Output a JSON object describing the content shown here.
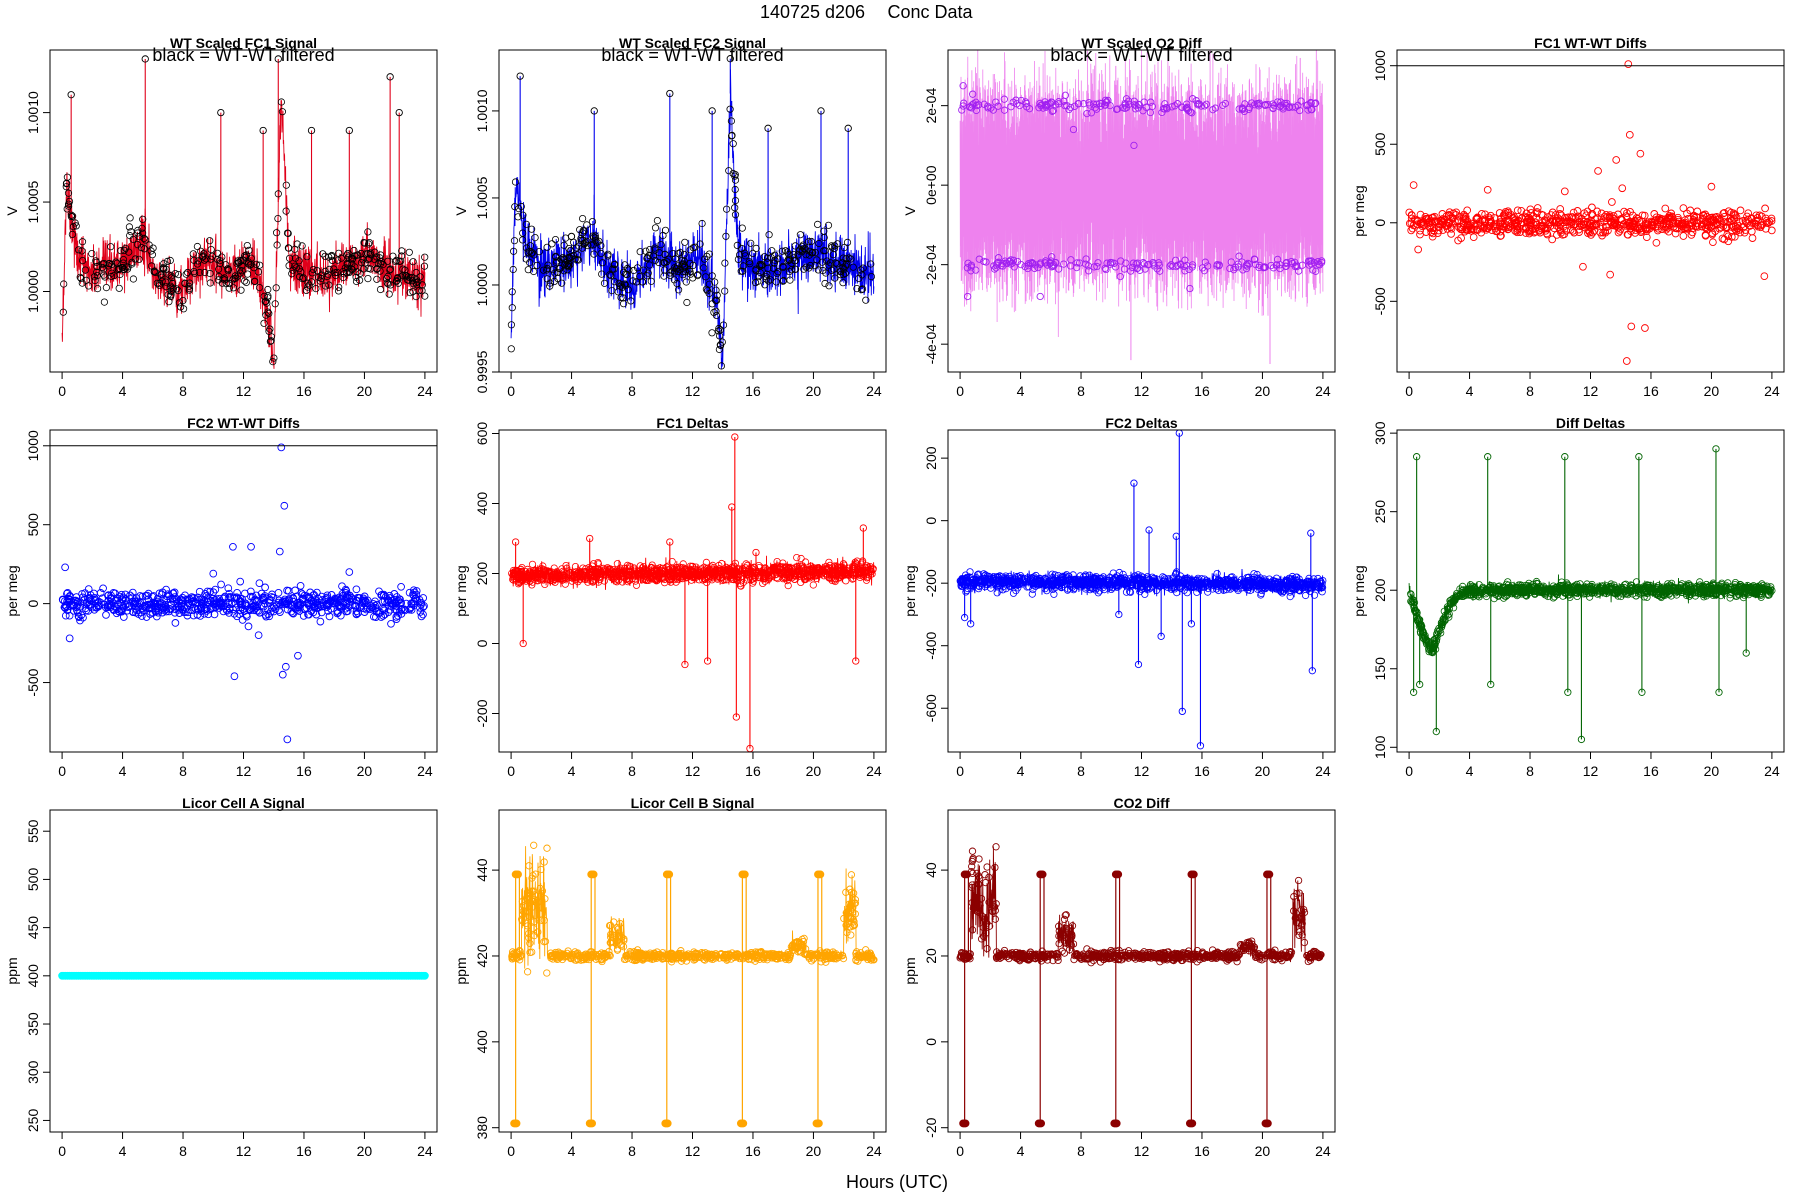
{
  "figure": {
    "title_parts": [
      "140725",
      "d206",
      "Conc Data"
    ],
    "xlabel": "Hours (UTC)"
  },
  "chart_data": [
    {
      "id": "fc1_signal",
      "type": "line",
      "title": "WT Scaled FC1 Signal",
      "note": "black = WT-WT filtered",
      "ylabel": "V",
      "color": "#e0001a",
      "marker": "circle",
      "marker_color": "#000000",
      "xlim": [
        -0.8,
        24.8
      ],
      "ylim": [
        0.99955,
        1.00135
      ],
      "xticks": [
        0,
        4,
        8,
        12,
        16,
        20,
        24
      ],
      "yticks": [
        1.0,
        1.0005,
        1.001
      ],
      "ytick_labels": [
        "1.0000",
        "1.0005",
        "1.0010"
      ],
      "gen": {
        "kind": "noise",
        "base": 1.0001,
        "amp": 0.00013,
        "markers": 420,
        "anchors": [
          [
            0,
            0.9997
          ],
          [
            0.3,
            1.0006
          ],
          [
            1,
            1.0002
          ],
          [
            2,
            1.0001
          ],
          [
            4,
            1.00015
          ],
          [
            5.4,
            1.0003
          ],
          [
            6,
            1.0001
          ],
          [
            8,
            1.0
          ],
          [
            9.5,
            1.0002
          ],
          [
            11,
            1.0001
          ],
          [
            12.5,
            1.00015
          ],
          [
            13.6,
            0.9999
          ],
          [
            14,
            0.9996
          ],
          [
            14.5,
            1.0011
          ],
          [
            15,
            1.0002
          ],
          [
            16,
            1.0001
          ],
          [
            18,
            1.0001
          ],
          [
            20,
            1.0002
          ],
          [
            22,
            1.0001
          ],
          [
            24,
            1.00005
          ]
        ],
        "spikes": [
          [
            0.6,
            1.0011
          ],
          [
            5.5,
            1.0013
          ],
          [
            10.5,
            1.001
          ],
          [
            13.3,
            1.0009
          ],
          [
            14.3,
            1.0013
          ],
          [
            16.5,
            1.0009
          ],
          [
            19,
            1.0009
          ],
          [
            21.7,
            1.0012
          ],
          [
            22.3,
            1.001
          ]
        ]
      }
    },
    {
      "id": "fc2_signal",
      "type": "line",
      "title": "WT Scaled FC2 Signal",
      "note": "black = WT-WT filtered",
      "ylabel": "V",
      "color": "#0000ee",
      "marker": "circle",
      "marker_color": "#000000",
      "xlim": [
        -0.8,
        24.8
      ],
      "ylim": [
        0.9995,
        1.00135
      ],
      "xticks": [
        0,
        4,
        8,
        12,
        16,
        20,
        24
      ],
      "yticks": [
        0.9995,
        1.0,
        1.0005,
        1.001
      ],
      "ytick_labels": [
        "0.9995",
        "1.0000",
        "1.0005",
        "1.0010"
      ],
      "gen": {
        "kind": "noise",
        "base": 1.0001,
        "amp": 0.00014,
        "markers": 420,
        "anchors": [
          [
            0,
            0.9997
          ],
          [
            0.3,
            1.0006
          ],
          [
            1,
            1.0002
          ],
          [
            2,
            1.0001
          ],
          [
            4,
            1.00015
          ],
          [
            5.4,
            1.0003
          ],
          [
            6,
            1.0001
          ],
          [
            8,
            1.0
          ],
          [
            9.5,
            1.0002
          ],
          [
            11,
            1.0001
          ],
          [
            12.5,
            1.00015
          ],
          [
            13.6,
            0.9999
          ],
          [
            14,
            0.99955
          ],
          [
            14.5,
            1.0011
          ],
          [
            15,
            1.0002
          ],
          [
            16,
            1.0001
          ],
          [
            18,
            1.0001
          ],
          [
            20,
            1.0002
          ],
          [
            22,
            1.0001
          ],
          [
            24,
            1.00005
          ]
        ],
        "spikes": [
          [
            0.6,
            1.0012
          ],
          [
            5.5,
            1.001
          ],
          [
            10.5,
            1.0011
          ],
          [
            13.3,
            1.001
          ],
          [
            14.5,
            1.0013
          ],
          [
            17,
            1.0009
          ],
          [
            20.5,
            1.001
          ],
          [
            22.3,
            1.0009
          ]
        ]
      }
    },
    {
      "id": "o2_diff",
      "type": "line",
      "title": "WT Scaled O2 Diff",
      "note": "black = WT-WT filtered",
      "ylabel": "V",
      "color": "#ee82ee",
      "marker": "circle",
      "marker_color": "#a020f0",
      "xlim": [
        -0.8,
        24.8
      ],
      "ylim": [
        -0.00047,
        0.00034
      ],
      "xticks": [
        0,
        4,
        8,
        12,
        16,
        20,
        24
      ],
      "yticks": [
        -0.0004,
        -0.0002,
        0,
        0.0002
      ],
      "ytick_labels": [
        "-4e-04",
        "-2e-04",
        "0e+00",
        "2e-04"
      ],
      "gen": {
        "kind": "band",
        "hi": 0.0002,
        "lo": -0.0002,
        "amp": 0.00012,
        "markers": 360,
        "spikes": [
          [
            0.5,
            -0.00028
          ],
          [
            11.3,
            -0.00044
          ],
          [
            15.2,
            -0.00028
          ],
          [
            20.5,
            -0.00045
          ],
          [
            10.3,
            0.0003
          ],
          [
            22.5,
            0.00032
          ]
        ]
      }
    },
    {
      "id": "fc1_wtwt",
      "type": "scatter",
      "title": "FC1 WT-WT Diffs",
      "ylabel": "per meg",
      "color": "#ff0000",
      "marker": "circle",
      "xlim": [
        -0.8,
        24.8
      ],
      "ylim": [
        -950,
        1100
      ],
      "hline": 1000,
      "xticks": [
        0,
        4,
        8,
        12,
        16,
        20,
        24
      ],
      "yticks": [
        -500,
        0,
        500,
        1000
      ],
      "ytick_labels": [
        "-500",
        "0",
        "500",
        "1000"
      ],
      "gen": {
        "kind": "scatter",
        "base": 0,
        "amp": 40,
        "markers": 700,
        "outliers": [
          [
            0.3,
            240
          ],
          [
            0.6,
            -170
          ],
          [
            5.2,
            210
          ],
          [
            10.3,
            200
          ],
          [
            12.5,
            330
          ],
          [
            13.7,
            400
          ],
          [
            14.1,
            220
          ],
          [
            14.5,
            1010
          ],
          [
            14.6,
            560
          ],
          [
            15.3,
            440
          ],
          [
            14.4,
            -880
          ],
          [
            14.7,
            -660
          ],
          [
            15.6,
            -670
          ],
          [
            11.5,
            -280
          ],
          [
            13.3,
            -330
          ],
          [
            20,
            230
          ],
          [
            23.5,
            -340
          ]
        ]
      }
    },
    {
      "id": "fc2_wtwt",
      "type": "scatter",
      "title": "FC2 WT-WT Diffs",
      "ylabel": "per meg",
      "color": "#0000ff",
      "marker": "circle",
      "xlim": [
        -0.8,
        24.8
      ],
      "ylim": [
        -940,
        1100
      ],
      "hline": 1000,
      "xticks": [
        0,
        4,
        8,
        12,
        16,
        20,
        24
      ],
      "yticks": [
        -500,
        0,
        500,
        1000
      ],
      "ytick_labels": [
        "-500",
        "0",
        "500",
        "1000"
      ],
      "gen": {
        "kind": "scatter",
        "base": 0,
        "amp": 45,
        "markers": 720,
        "outliers": [
          [
            0.2,
            230
          ],
          [
            0.5,
            -220
          ],
          [
            10,
            190
          ],
          [
            11.3,
            360
          ],
          [
            12.5,
            360
          ],
          [
            14.4,
            330
          ],
          [
            14.5,
            990
          ],
          [
            14.7,
            620
          ],
          [
            11.4,
            -460
          ],
          [
            14.6,
            -450
          ],
          [
            14.8,
            -400
          ],
          [
            14.9,
            -860
          ],
          [
            13,
            -200
          ],
          [
            15.6,
            -330
          ],
          [
            19,
            200
          ]
        ]
      }
    },
    {
      "id": "fc1_deltas",
      "type": "line",
      "title": "FC1 Deltas",
      "ylabel": "per meg",
      "color": "#ff0000",
      "marker": "circle",
      "xlim": [
        -0.8,
        24.8
      ],
      "ylim": [
        -310,
        610
      ],
      "xticks": [
        0,
        4,
        8,
        12,
        16,
        20,
        24
      ],
      "yticks": [
        -200,
        0,
        200,
        400,
        600
      ],
      "ytick_labels": [
        "-200",
        "0",
        "200",
        "400",
        "600"
      ],
      "gen": {
        "kind": "noise",
        "base": 200,
        "amp": 25,
        "markers": 900,
        "anchors": [
          [
            0,
            195
          ],
          [
            24,
            205
          ]
        ],
        "spikes": [
          [
            0.3,
            290
          ],
          [
            0.8,
            0
          ],
          [
            5.2,
            300
          ],
          [
            10.5,
            290
          ],
          [
            11.5,
            -60
          ],
          [
            13,
            -50
          ],
          [
            14.6,
            390
          ],
          [
            14.8,
            590
          ],
          [
            14.9,
            -210
          ],
          [
            15.8,
            -300
          ],
          [
            16.2,
            260
          ],
          [
            22.8,
            -50
          ],
          [
            23.3,
            330
          ]
        ]
      }
    },
    {
      "id": "fc2_deltas",
      "type": "line",
      "title": "FC2 Deltas",
      "ylabel": "per meg",
      "color": "#0000ff",
      "marker": "circle",
      "xlim": [
        -0.8,
        24.8
      ],
      "ylim": [
        -740,
        290
      ],
      "xticks": [
        0,
        4,
        8,
        12,
        16,
        20,
        24
      ],
      "yticks": [
        -600,
        -400,
        -200,
        0,
        200
      ],
      "ytick_labels": [
        "-600",
        "-400",
        "-200",
        "0",
        "200"
      ],
      "gen": {
        "kind": "noise",
        "base": -200,
        "amp": 25,
        "markers": 900,
        "anchors": [
          [
            0,
            -195
          ],
          [
            24,
            -205
          ]
        ],
        "spikes": [
          [
            0.3,
            -310
          ],
          [
            0.7,
            -330
          ],
          [
            10.5,
            -300
          ],
          [
            11.5,
            120
          ],
          [
            11.8,
            -460
          ],
          [
            12.5,
            -30
          ],
          [
            13.3,
            -370
          ],
          [
            14.3,
            -50
          ],
          [
            14.5,
            280
          ],
          [
            14.7,
            -610
          ],
          [
            15.3,
            -330
          ],
          [
            15.9,
            -720
          ],
          [
            23.3,
            -480
          ],
          [
            23.2,
            -40
          ]
        ]
      }
    },
    {
      "id": "diff_deltas",
      "type": "line",
      "title": "Diff Deltas",
      "ylabel": "per meg",
      "color": "#006400",
      "marker": "circle",
      "xlim": [
        -0.8,
        24.8
      ],
      "ylim": [
        97,
        302
      ],
      "xticks": [
        0,
        4,
        8,
        12,
        16,
        20,
        24
      ],
      "yticks": [
        100,
        150,
        200,
        250,
        300
      ],
      "ytick_labels": [
        "100",
        "150",
        "200",
        "250",
        "300"
      ],
      "gen": {
        "kind": "noise",
        "base": 200,
        "amp": 4,
        "markers": 900,
        "anchors": [
          [
            0,
            200
          ],
          [
            0.8,
            175
          ],
          [
            1.5,
            160
          ],
          [
            2.2,
            180
          ],
          [
            3,
            195
          ],
          [
            4,
            200
          ],
          [
            24,
            200
          ]
        ],
        "spikes": [
          [
            0.3,
            135
          ],
          [
            0.5,
            285
          ],
          [
            0.7,
            140
          ],
          [
            1.8,
            110
          ],
          [
            5.2,
            285
          ],
          [
            5.4,
            140
          ],
          [
            10.3,
            285
          ],
          [
            10.5,
            135
          ],
          [
            11.4,
            105
          ],
          [
            15.2,
            285
          ],
          [
            15.4,
            135
          ],
          [
            20.3,
            290
          ],
          [
            20.5,
            135
          ],
          [
            22.3,
            160
          ]
        ]
      }
    },
    {
      "id": "licor_a",
      "type": "line",
      "title": "Licor Cell A Signal",
      "ylabel": "ppm",
      "color": "#00ffff",
      "marker": "circle",
      "xlim": [
        -0.8,
        24.8
      ],
      "ylim": [
        238,
        572
      ],
      "xticks": [
        0,
        4,
        8,
        12,
        16,
        20,
        24
      ],
      "yticks": [
        250,
        300,
        350,
        400,
        450,
        500,
        550
      ],
      "ytick_labels": [
        "250",
        "300",
        "350",
        "400",
        "450",
        "500",
        "550"
      ],
      "gen": {
        "kind": "flat",
        "base": 400,
        "markers": 200
      }
    },
    {
      "id": "licor_b",
      "type": "line",
      "title": "Licor Cell B Signal",
      "ylabel": "ppm",
      "color": "#ffa500",
      "marker": "circle",
      "xlim": [
        -0.8,
        24.8
      ],
      "ylim": [
        379,
        454
      ],
      "xticks": [
        0,
        4,
        8,
        12,
        16,
        20,
        24
      ],
      "yticks": [
        380,
        400,
        420,
        440
      ],
      "ytick_labels": [
        "380",
        "400",
        "420",
        "440"
      ],
      "gen": {
        "kind": "licor",
        "base": 420,
        "hi": 439,
        "lo": 381,
        "amp": 0.5,
        "markers": 700,
        "events": [
          0.3,
          5.3,
          10.3,
          15.3,
          20.3
        ],
        "bumps": [
          [
            0.7,
            2.4,
            432,
            12
          ],
          [
            6.5,
            7.5,
            425,
            4
          ],
          [
            18.5,
            19.5,
            422,
            2
          ],
          [
            22,
            22.8,
            430,
            8
          ]
        ]
      }
    },
    {
      "id": "co2_diff",
      "type": "line",
      "title": "CO2 Diff",
      "ylabel": "ppm",
      "color": "#8b0000",
      "marker": "circle",
      "xlim": [
        -0.8,
        24.8
      ],
      "ylim": [
        -21,
        54
      ],
      "xticks": [
        0,
        4,
        8,
        12,
        16,
        20,
        24
      ],
      "yticks": [
        -20,
        0,
        20,
        40
      ],
      "ytick_labels": [
        "-20",
        "0",
        "20",
        "40"
      ],
      "gen": {
        "kind": "licor",
        "base": 20,
        "hi": 39,
        "lo": -19,
        "amp": 0.5,
        "markers": 700,
        "events": [
          0.3,
          5.3,
          10.3,
          15.3,
          20.3
        ],
        "bumps": [
          [
            0.7,
            2.4,
            32,
            12
          ],
          [
            6.5,
            7.5,
            25,
            4
          ],
          [
            18.5,
            19.5,
            22,
            2
          ],
          [
            22,
            22.8,
            30,
            8
          ]
        ]
      }
    }
  ]
}
